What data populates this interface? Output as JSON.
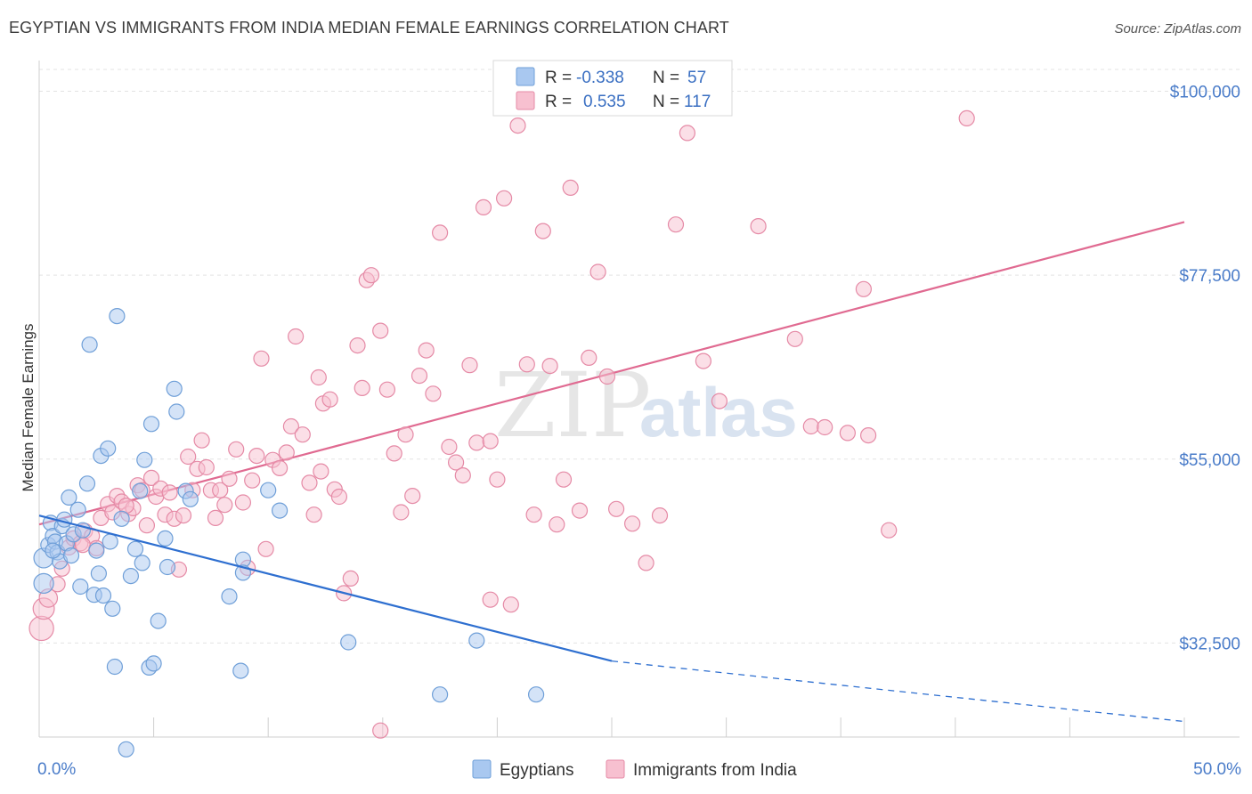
{
  "title": "EGYPTIAN VS IMMIGRANTS FROM INDIA MEDIAN FEMALE EARNINGS CORRELATION CHART",
  "source": "Source: ZipAtlas.com",
  "watermark": {
    "part1": "ZIP",
    "part2": "atlas"
  },
  "legend": {
    "rows": [
      {
        "r_label": "R =",
        "r_value": "-0.338",
        "n_label": "N =",
        "n_value": "57",
        "color": "#a9c8f0",
        "border": "#6f9fd8"
      },
      {
        "r_label": "R =",
        "r_value": "0.535",
        "n_label": "N =",
        "n_value": "117",
        "color": "#f7c0d0",
        "border": "#e58aa6"
      }
    ]
  },
  "bottom_legend": [
    {
      "label": "Egyptians",
      "color": "#a9c8f0",
      "border": "#6f9fd8"
    },
    {
      "label": "Immigrants from India",
      "color": "#f7c0d0",
      "border": "#e58aa6"
    }
  ],
  "chart_data": {
    "type": "scatter",
    "title": "EGYPTIAN VS IMMIGRANTS FROM INDIA MEDIAN FEMALE EARNINGS CORRELATION CHART",
    "xlabel": "",
    "ylabel": "Median Female Earnings",
    "xlim": [
      0,
      50
    ],
    "ylim": [
      21000,
      103000
    ],
    "x_tick_labels": [
      {
        "value": 0,
        "label": "0.0%"
      },
      {
        "value": 50,
        "label": "50.0%"
      }
    ],
    "y_ticks": [
      {
        "value": 32500,
        "label": "$32,500"
      },
      {
        "value": 55000,
        "label": "$55,000"
      },
      {
        "value": 77500,
        "label": "$77,500"
      },
      {
        "value": 100000,
        "label": "$100,000"
      }
    ],
    "grid": true,
    "series": [
      {
        "name": "Egyptians",
        "color": "#6f9fd8",
        "fill": "#a9c8f0",
        "trend": {
          "x0": 0,
          "y0": 48100,
          "x1": 25,
          "y1": 30300,
          "dash_to_x": 50,
          "dash_to_y": 22900,
          "color": "#2e6fd0"
        },
        "points": [
          [
            0.2,
            42900,
            13
          ],
          [
            0.2,
            39800,
            13
          ],
          [
            0.4,
            44500,
            10
          ],
          [
            0.5,
            47200,
            10
          ],
          [
            0.6,
            45600,
            10
          ],
          [
            0.7,
            44900,
            10
          ],
          [
            0.8,
            43600,
            10
          ],
          [
            0.9,
            42500,
            10
          ],
          [
            1.0,
            46800,
            10
          ],
          [
            1.1,
            47600,
            10
          ],
          [
            1.2,
            44700,
            10
          ],
          [
            1.3,
            50300,
            10
          ],
          [
            1.5,
            45800,
            10
          ],
          [
            1.7,
            48800,
            10
          ],
          [
            1.8,
            39400,
            10
          ],
          [
            1.9,
            46300,
            10
          ],
          [
            2.1,
            52000,
            10
          ],
          [
            2.2,
            69000,
            10
          ],
          [
            2.4,
            38400,
            10
          ],
          [
            2.5,
            43800,
            10
          ],
          [
            2.6,
            41000,
            10
          ],
          [
            2.7,
            55400,
            10
          ],
          [
            3.0,
            56300,
            10
          ],
          [
            3.1,
            44900,
            10
          ],
          [
            3.2,
            36700,
            10
          ],
          [
            3.4,
            72500,
            10
          ],
          [
            3.6,
            47700,
            10
          ],
          [
            3.8,
            19500,
            10
          ],
          [
            4.0,
            40700,
            10
          ],
          [
            4.2,
            44000,
            10
          ],
          [
            4.4,
            51100,
            10
          ],
          [
            4.5,
            42300,
            10
          ],
          [
            4.6,
            54900,
            10
          ],
          [
            4.8,
            29500,
            10
          ],
          [
            4.9,
            59300,
            10
          ],
          [
            5.2,
            35200,
            10
          ],
          [
            5.5,
            45300,
            10
          ],
          [
            5.6,
            41800,
            10
          ],
          [
            5.9,
            63600,
            10
          ],
          [
            6.0,
            60800,
            10
          ],
          [
            6.4,
            51100,
            10
          ],
          [
            6.6,
            50100,
            10
          ],
          [
            8.3,
            38200,
            10
          ],
          [
            8.8,
            29100,
            10
          ],
          [
            8.9,
            42700,
            10
          ],
          [
            8.9,
            41100,
            10
          ],
          [
            10.0,
            51200,
            10
          ],
          [
            10.5,
            48700,
            10
          ],
          [
            13.5,
            32600,
            10
          ],
          [
            17.5,
            26200,
            10
          ],
          [
            19.1,
            32800,
            10
          ],
          [
            21.7,
            26200,
            10
          ],
          [
            0.6,
            43800,
            10
          ],
          [
            1.4,
            43200,
            10
          ],
          [
            2.8,
            38300,
            10
          ],
          [
            3.3,
            29600,
            10
          ],
          [
            5.0,
            30000,
            10
          ]
        ]
      },
      {
        "name": "Immigrants from India",
        "color": "#e58aa6",
        "fill": "#f7c0d0",
        "trend": {
          "x0": 0,
          "y0": 47000,
          "x1": 50,
          "y1": 84000,
          "color": "#e06a91"
        },
        "points": [
          [
            0.1,
            34300,
            16
          ],
          [
            0.2,
            36700,
            14
          ],
          [
            0.4,
            38000,
            12
          ],
          [
            0.8,
            39700,
            10
          ],
          [
            1.0,
            41600,
            10
          ],
          [
            1.3,
            44200,
            10
          ],
          [
            1.5,
            45300,
            10
          ],
          [
            1.8,
            44700,
            10
          ],
          [
            2.0,
            46200,
            10
          ],
          [
            2.3,
            45600,
            10
          ],
          [
            2.5,
            44100,
            10
          ],
          [
            2.7,
            47800,
            10
          ],
          [
            3.0,
            49500,
            10
          ],
          [
            3.2,
            48500,
            10
          ],
          [
            3.4,
            50500,
            10
          ],
          [
            3.6,
            49800,
            10
          ],
          [
            3.9,
            48300,
            10
          ],
          [
            4.1,
            49000,
            10
          ],
          [
            4.3,
            51800,
            10
          ],
          [
            4.5,
            51200,
            10
          ],
          [
            4.7,
            46900,
            10
          ],
          [
            4.9,
            52700,
            10
          ],
          [
            5.1,
            50400,
            10
          ],
          [
            5.3,
            51400,
            10
          ],
          [
            5.5,
            48200,
            10
          ],
          [
            5.7,
            50900,
            10
          ],
          [
            5.9,
            47700,
            10
          ],
          [
            6.1,
            41500,
            10
          ],
          [
            6.3,
            48100,
            10
          ],
          [
            6.5,
            55300,
            10
          ],
          [
            6.7,
            51200,
            10
          ],
          [
            6.9,
            53800,
            10
          ],
          [
            7.1,
            57300,
            10
          ],
          [
            7.3,
            54000,
            10
          ],
          [
            7.5,
            51200,
            10
          ],
          [
            7.7,
            47800,
            10
          ],
          [
            7.9,
            51200,
            10
          ],
          [
            8.1,
            49400,
            10
          ],
          [
            8.3,
            52600,
            10
          ],
          [
            8.6,
            56200,
            10
          ],
          [
            8.9,
            49700,
            10
          ],
          [
            9.1,
            41700,
            10
          ],
          [
            9.3,
            52400,
            10
          ],
          [
            9.5,
            55400,
            10
          ],
          [
            9.7,
            67300,
            10
          ],
          [
            9.9,
            44000,
            10
          ],
          [
            10.2,
            54900,
            10
          ],
          [
            10.5,
            53900,
            10
          ],
          [
            10.8,
            55800,
            10
          ],
          [
            11.0,
            59000,
            10
          ],
          [
            11.2,
            70000,
            10
          ],
          [
            11.5,
            58000,
            10
          ],
          [
            11.8,
            52100,
            10
          ],
          [
            12.0,
            48200,
            10
          ],
          [
            12.2,
            65000,
            10
          ],
          [
            12.4,
            61800,
            10
          ],
          [
            12.7,
            62300,
            10
          ],
          [
            12.9,
            51300,
            10
          ],
          [
            13.1,
            50400,
            10
          ],
          [
            13.3,
            38600,
            10
          ],
          [
            13.6,
            40400,
            10
          ],
          [
            13.9,
            68900,
            10
          ],
          [
            14.1,
            63700,
            10
          ],
          [
            14.3,
            76900,
            10
          ],
          [
            14.5,
            77500,
            10
          ],
          [
            14.9,
            70700,
            10
          ],
          [
            15.2,
            63500,
            10
          ],
          [
            15.5,
            55700,
            10
          ],
          [
            15.8,
            48500,
            10
          ],
          [
            16.0,
            58000,
            10
          ],
          [
            16.3,
            50500,
            10
          ],
          [
            16.6,
            65200,
            10
          ],
          [
            16.9,
            68300,
            10
          ],
          [
            17.2,
            63000,
            10
          ],
          [
            17.5,
            82700,
            10
          ],
          [
            17.9,
            56500,
            10
          ],
          [
            18.2,
            54600,
            10
          ],
          [
            18.5,
            53000,
            10
          ],
          [
            18.8,
            66500,
            10
          ],
          [
            19.1,
            57000,
            10
          ],
          [
            19.4,
            85800,
            10
          ],
          [
            19.7,
            57200,
            10
          ],
          [
            20.0,
            52500,
            10
          ],
          [
            20.3,
            86900,
            10
          ],
          [
            20.6,
            37200,
            10
          ],
          [
            20.9,
            95800,
            10
          ],
          [
            21.3,
            66600,
            10
          ],
          [
            21.6,
            48200,
            10
          ],
          [
            22.0,
            82900,
            10
          ],
          [
            22.3,
            66400,
            10
          ],
          [
            22.6,
            47000,
            10
          ],
          [
            22.9,
            52500,
            10
          ],
          [
            23.2,
            88200,
            10
          ],
          [
            23.6,
            48700,
            10
          ],
          [
            24.0,
            67400,
            10
          ],
          [
            24.4,
            77900,
            10
          ],
          [
            24.8,
            65100,
            10
          ],
          [
            25.2,
            48900,
            10
          ],
          [
            25.9,
            47100,
            10
          ],
          [
            26.5,
            42300,
            10
          ],
          [
            27.1,
            48100,
            10
          ],
          [
            27.8,
            83700,
            10
          ],
          [
            28.3,
            94900,
            10
          ],
          [
            29.0,
            67000,
            10
          ],
          [
            29.7,
            62100,
            10
          ],
          [
            31.4,
            83500,
            10
          ],
          [
            33.0,
            69700,
            10
          ],
          [
            33.7,
            59000,
            10
          ],
          [
            34.3,
            58900,
            10
          ],
          [
            35.3,
            58200,
            10
          ],
          [
            36.0,
            75800,
            10
          ],
          [
            36.2,
            57900,
            10
          ],
          [
            37.1,
            46300,
            10
          ],
          [
            40.5,
            96700,
            10
          ],
          [
            14.9,
            21800,
            10
          ],
          [
            19.7,
            37800,
            10
          ],
          [
            1.9,
            44500,
            10
          ],
          [
            3.8,
            49300,
            10
          ],
          [
            12.3,
            53500,
            10
          ]
        ]
      }
    ]
  }
}
